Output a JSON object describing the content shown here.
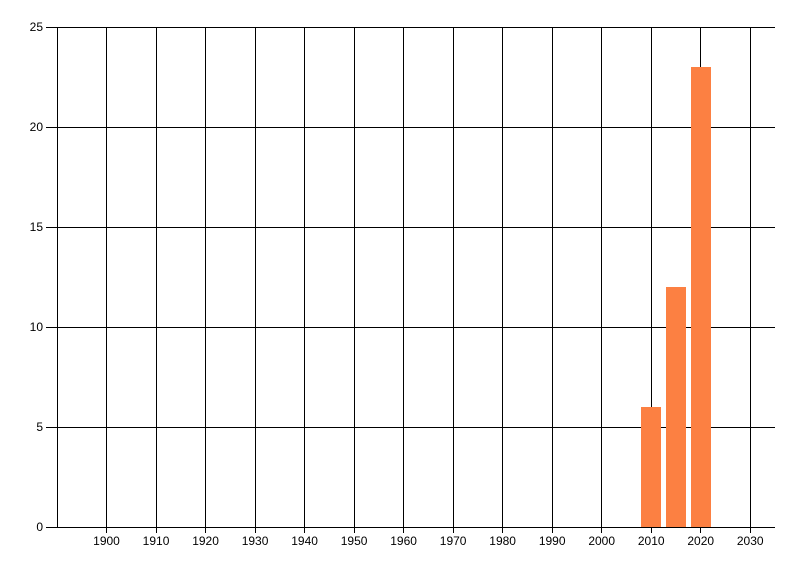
{
  "page": {
    "background": "#ffffff"
  },
  "chart_data": {
    "type": "bar",
    "title": "",
    "xlabel": "",
    "ylabel": "",
    "x": [
      2010,
      2015,
      2020
    ],
    "values": [
      6,
      12,
      23
    ],
    "xlim": [
      1890,
      2035
    ],
    "ylim": [
      0,
      25
    ],
    "xticks": [
      1900,
      1910,
      1920,
      1930,
      1940,
      1950,
      1960,
      1970,
      1980,
      1990,
      2000,
      2010,
      2020,
      2030
    ],
    "yticks": [
      0,
      5,
      10,
      15,
      20,
      25
    ],
    "grid": true,
    "legend": false,
    "bar_width_x": 4,
    "bar_color": "#fc8042",
    "grid_color": "#000000",
    "text_color": "#000000"
  }
}
